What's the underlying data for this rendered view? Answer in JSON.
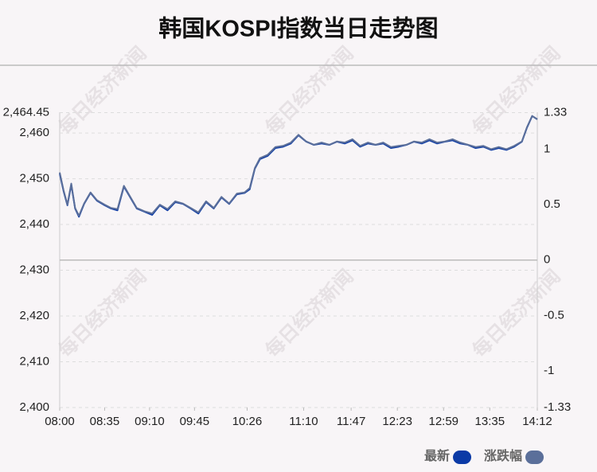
{
  "chart_data": {
    "type": "line",
    "title": "韩国KOSPI指数当日走势图",
    "watermark": "每日经济新闻",
    "x": [
      "08:00",
      "08:03",
      "08:06",
      "08:09",
      "08:12",
      "08:15",
      "08:19",
      "08:24",
      "08:29",
      "08:35",
      "08:40",
      "08:45",
      "08:50",
      "08:55",
      "09:00",
      "09:06",
      "09:12",
      "09:18",
      "09:24",
      "09:30",
      "09:36",
      "09:42",
      "09:48",
      "09:54",
      "10:00",
      "10:06",
      "10:12",
      "10:18",
      "10:24",
      "10:28",
      "10:32",
      "10:36",
      "10:42",
      "10:48",
      "10:54",
      "11:00",
      "11:06",
      "11:12",
      "11:18",
      "11:24",
      "11:30",
      "11:36",
      "11:42",
      "11:48",
      "11:54",
      "12:00",
      "12:06",
      "12:12",
      "12:18",
      "12:24",
      "12:30",
      "12:36",
      "12:42",
      "12:48",
      "12:54",
      "13:00",
      "13:06",
      "13:12",
      "13:18",
      "13:24",
      "13:30",
      "13:36",
      "13:42",
      "13:48",
      "13:54",
      "14:00",
      "14:04",
      "14:08",
      "14:12"
    ],
    "xlim": [
      "08:00",
      "14:12"
    ],
    "xticks": [
      "08:00",
      "08:35",
      "09:10",
      "09:45",
      "10:26",
      "11:10",
      "11:47",
      "12:23",
      "12:59",
      "13:35",
      "14:12"
    ],
    "series": [
      {
        "name": "最新",
        "color": "#0b3aa6",
        "values": [
          2451.1,
          2447.3,
          2444.2,
          2448.7,
          2443.5,
          2441.7,
          2444.5,
          2446.9,
          2445.2,
          2444.2,
          2443.5,
          2443.1,
          2448.3,
          2445.9,
          2443.5,
          2442.8,
          2442.1,
          2444.2,
          2443.1,
          2444.9,
          2444.5,
          2443.5,
          2442.4,
          2444.9,
          2443.5,
          2445.9,
          2444.5,
          2446.6,
          2446.9,
          2447.7,
          2452.2,
          2454.3,
          2455.0,
          2456.7,
          2457.0,
          2457.7,
          2459.5,
          2458.1,
          2457.4,
          2457.7,
          2457.4,
          2458.1,
          2457.7,
          2458.4,
          2457.0,
          2457.7,
          2457.4,
          2457.7,
          2456.7,
          2457.0,
          2457.4,
          2458.1,
          2457.7,
          2458.4,
          2457.7,
          2458.1,
          2458.4,
          2457.7,
          2457.4,
          2456.7,
          2457.0,
          2456.3,
          2456.7,
          2456.3,
          2457.0,
          2458.1,
          2461.2,
          2463.7,
          2463.0
        ]
      },
      {
        "name": "涨跌幅",
        "color": "#5b6f9a",
        "axis": "y2",
        "values": [
          0.79,
          0.63,
          0.5,
          0.69,
          0.47,
          0.4,
          0.51,
          0.61,
          0.54,
          0.5,
          0.47,
          0.46,
          0.67,
          0.57,
          0.47,
          0.44,
          0.42,
          0.5,
          0.46,
          0.53,
          0.51,
          0.47,
          0.43,
          0.53,
          0.47,
          0.57,
          0.51,
          0.6,
          0.61,
          0.65,
          0.83,
          0.92,
          0.95,
          1.02,
          1.03,
          1.06,
          1.13,
          1.07,
          1.04,
          1.06,
          1.04,
          1.07,
          1.06,
          1.09,
          1.03,
          1.06,
          1.04,
          1.06,
          1.02,
          1.03,
          1.04,
          1.07,
          1.06,
          1.09,
          1.06,
          1.07,
          1.09,
          1.06,
          1.04,
          1.02,
          1.03,
          1.0,
          1.02,
          1.0,
          1.03,
          1.07,
          1.2,
          1.3,
          1.27
        ]
      }
    ],
    "ylim": [
      2400,
      2464.45
    ],
    "yticks": [
      {
        "value": 2400,
        "label": "2,400"
      },
      {
        "value": 2410,
        "label": "2,410"
      },
      {
        "value": 2420,
        "label": "2,420"
      },
      {
        "value": 2430,
        "label": "2,430"
      },
      {
        "value": 2440,
        "label": "2,440"
      },
      {
        "value": 2450,
        "label": "2,450"
      },
      {
        "value": 2460,
        "label": "2,460"
      },
      {
        "value": 2464.45,
        "label": "2,464.45"
      }
    ],
    "y2lim": [
      -1.33,
      1.33
    ],
    "y2ticks": [
      -1.33,
      -1,
      -0.5,
      0,
      0.5,
      1,
      1.33
    ],
    "grid": true
  }
}
